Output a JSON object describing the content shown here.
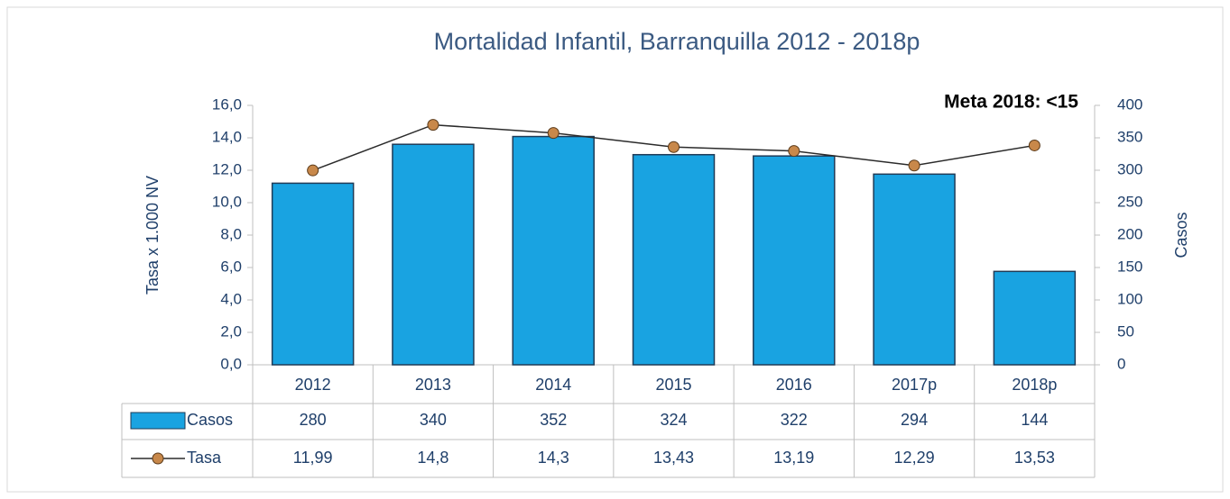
{
  "chart_data": {
    "type": "combo",
    "title": "Mortalidad Infantil, Barranquilla  2012 - 2018p",
    "annotation": "Meta 2018: <15",
    "ylabel": "Tasa x 1.000 NV",
    "y2label": "Casos",
    "categories": [
      "2012",
      "2013",
      "2014",
      "2015",
      "2016",
      "2017p",
      "2018p"
    ],
    "series": [
      {
        "name": "Casos",
        "type": "bar",
        "axis": "y2",
        "color": "#19a3e1",
        "values": [
          280,
          340,
          352,
          324,
          322,
          294,
          144
        ]
      },
      {
        "name": "Tasa",
        "type": "line",
        "axis": "y",
        "color": "#c8884a",
        "values": [
          11.99,
          14.8,
          14.3,
          13.43,
          13.19,
          12.29,
          13.53
        ],
        "value_labels": [
          "11,99",
          "14,8",
          "14,3",
          "13,43",
          "13,19",
          "12,29",
          "13,53"
        ]
      }
    ],
    "ylim": [
      0,
      16
    ],
    "yticks": [
      {
        "value": 0,
        "label": "0,0"
      },
      {
        "value": 2,
        "label": "2,0"
      },
      {
        "value": 4,
        "label": "4,0"
      },
      {
        "value": 6,
        "label": "6,0"
      },
      {
        "value": 8,
        "label": "8,0"
      },
      {
        "value": 10,
        "label": "10,0"
      },
      {
        "value": 12,
        "label": "12,0"
      },
      {
        "value": 14,
        "label": "14,0"
      },
      {
        "value": 16,
        "label": "16,0"
      }
    ],
    "y2lim": [
      0,
      400
    ],
    "y2ticks": [
      0,
      50,
      100,
      150,
      200,
      250,
      300,
      350,
      400
    ]
  }
}
